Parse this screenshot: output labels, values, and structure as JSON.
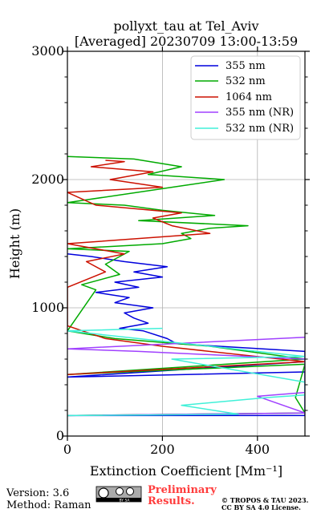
{
  "chart_data": {
    "type": "line",
    "title": "pollyxt_tau at Tel_Aviv",
    "subtitle": "[Averaged] 20230709 13:00-13:59",
    "xlabel": "Extinction Coefficient [Mm⁻¹]",
    "ylabel": "Height (m)",
    "xlim": [
      0,
      500
    ],
    "ylim": [
      0,
      3000
    ],
    "xticks": [
      "0",
      "200",
      "400"
    ],
    "yticks": [
      "0",
      "1000",
      "2000",
      "3000"
    ],
    "grid": true,
    "legend_position": "top-right",
    "series": [
      {
        "name": "355 nm",
        "color": "#0000dd",
        "points": [
          [
            0,
            160
          ],
          [
            500,
            160
          ],
          [
            500,
            500
          ],
          [
            0,
            460
          ],
          [
            500,
            580
          ],
          [
            500,
            660
          ],
          [
            230,
            720
          ],
          [
            210,
            760
          ],
          [
            160,
            820
          ],
          [
            110,
            840
          ],
          [
            170,
            880
          ],
          [
            140,
            920
          ],
          [
            120,
            960
          ],
          [
            180,
            1000
          ],
          [
            100,
            1040
          ],
          [
            130,
            1080
          ],
          [
            60,
            1120
          ],
          [
            150,
            1160
          ],
          [
            100,
            1200
          ],
          [
            200,
            1240
          ],
          [
            140,
            1280
          ],
          [
            210,
            1320
          ],
          [
            120,
            1360
          ],
          [
            50,
            1400
          ],
          [
            0,
            1420
          ]
        ]
      },
      {
        "name": "532 nm",
        "color": "#00aa00",
        "points": [
          [
            0,
            160
          ],
          [
            500,
            180
          ],
          [
            480,
            300
          ],
          [
            500,
            560
          ],
          [
            0,
            480
          ],
          [
            500,
            600
          ],
          [
            300,
            700
          ],
          [
            100,
            760
          ],
          [
            0,
            820
          ],
          [
            60,
            1140
          ],
          [
            30,
            1180
          ],
          [
            110,
            1260
          ],
          [
            80,
            1340
          ],
          [
            130,
            1440
          ],
          [
            0,
            1460
          ],
          [
            200,
            1500
          ],
          [
            260,
            1540
          ],
          [
            240,
            1580
          ],
          [
            300,
            1620
          ],
          [
            380,
            1640
          ],
          [
            150,
            1680
          ],
          [
            310,
            1720
          ],
          [
            200,
            1760
          ],
          [
            120,
            1800
          ],
          [
            0,
            1820
          ],
          [
            220,
            1940
          ],
          [
            330,
            2000
          ],
          [
            170,
            2040
          ],
          [
            240,
            2100
          ],
          [
            140,
            2160
          ],
          [
            0,
            2180
          ]
        ]
      },
      {
        "name": "1064 nm",
        "color": "#cc1100",
        "points": [
          [
            0,
            480
          ],
          [
            500,
            580
          ],
          [
            200,
            700
          ],
          [
            80,
            760
          ],
          [
            0,
            860
          ],
          [
            0,
            1160
          ],
          [
            80,
            1280
          ],
          [
            40,
            1360
          ],
          [
            120,
            1420
          ],
          [
            0,
            1500
          ],
          [
            300,
            1580
          ],
          [
            220,
            1640
          ],
          [
            180,
            1700
          ],
          [
            240,
            1740
          ],
          [
            60,
            1800
          ],
          [
            0,
            1900
          ],
          [
            200,
            1940
          ],
          [
            90,
            2000
          ],
          [
            180,
            2060
          ],
          [
            50,
            2100
          ],
          [
            120,
            2140
          ],
          [
            80,
            2150
          ]
        ]
      },
      {
        "name": "355 nm (NR)",
        "color": "#a040ff",
        "points": [
          [
            0,
            160
          ],
          [
            500,
            180
          ],
          [
            400,
            310
          ],
          [
            500,
            340
          ],
          [
            500,
            600
          ],
          [
            150,
            660
          ],
          [
            0,
            680
          ],
          [
            500,
            770
          ]
        ]
      },
      {
        "name": "532 nm (NR)",
        "color": "#40f0d8",
        "points": [
          [
            0,
            160
          ],
          [
            360,
            170
          ],
          [
            240,
            240
          ],
          [
            420,
            300
          ],
          [
            500,
            320
          ],
          [
            500,
            420
          ],
          [
            220,
            600
          ],
          [
            500,
            620
          ],
          [
            0,
            820
          ],
          [
            200,
            840
          ]
        ]
      }
    ]
  },
  "footer": {
    "version": "Version: 3.6",
    "method": "Method: Raman",
    "prelim_line1": "Preliminary",
    "prelim_line2": "Results.",
    "copyright_line1": "© TROPOS & TAU 2023.",
    "copyright_line2": "CC BY SA 4.0 License."
  },
  "cc_badge": {
    "text": "BY SA"
  }
}
